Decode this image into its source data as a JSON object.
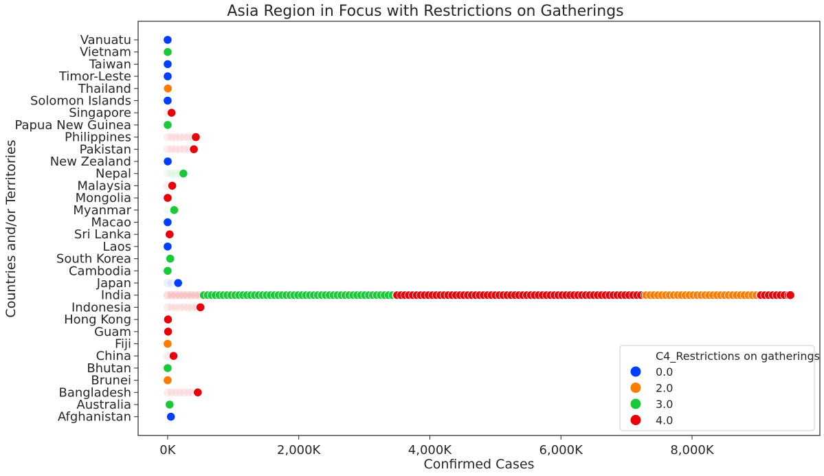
{
  "chart_data": {
    "type": "scatter",
    "title": "Asia Region in Focus with Restrictions on Gatherings",
    "xlabel": "Confirmed Cases",
    "ylabel": "Countries and/or Territories",
    "xlim": [
      -450,
      9950
    ],
    "xticks": [
      0,
      2000,
      4000,
      6000,
      8000
    ],
    "xtick_labels": [
      "0K",
      "2,000K",
      "4,000K",
      "6,000K",
      "8,000K"
    ],
    "x_unit": "thousands",
    "categories": [
      "Vanuatu",
      "Vietnam",
      "Taiwan",
      "Timor-Leste",
      "Thailand",
      "Solomon Islands",
      "Singapore",
      "Papua New Guinea",
      "Philippines",
      "Pakistan",
      "New Zealand",
      "Nepal",
      "Malaysia",
      "Mongolia",
      "Myanmar",
      "Macao",
      "Sri Lanka",
      "Laos",
      "South Korea",
      "Cambodia",
      "Japan",
      "India",
      "Indonesia",
      "Hong Kong",
      "Guam",
      "Fiji",
      "China",
      "Bhutan",
      "Brunei",
      "Bangladesh",
      "Australia",
      "Afghanistan"
    ],
    "grid": false,
    "legend": {
      "title": "C4_Restrictions on gatherings",
      "placement": "lower-right",
      "entries": [
        {
          "label": "0.0",
          "level": 0,
          "color": "#023eff"
        },
        {
          "label": "2.0",
          "level": 2,
          "color": "#ff7c00"
        },
        {
          "label": "3.0",
          "level": 3,
          "color": "#1ac938"
        },
        {
          "label": "4.0",
          "level": 4,
          "color": "#e8000b"
        }
      ]
    },
    "points": [
      {
        "country": "Vanuatu",
        "x": 0,
        "level": 0
      },
      {
        "country": "Vietnam",
        "x": 1,
        "level": 3
      },
      {
        "country": "Taiwan",
        "x": 1,
        "level": 0
      },
      {
        "country": "Timor-Leste",
        "x": 1,
        "level": 0
      },
      {
        "country": "Thailand",
        "x": 4,
        "level": 2
      },
      {
        "country": "Solomon Islands",
        "x": 0,
        "level": 0
      },
      {
        "country": "Singapore",
        "x": 60,
        "level": 4
      },
      {
        "country": "Papua New Guinea",
        "x": 1,
        "level": 3
      },
      {
        "country": "Philippines",
        "x": 430,
        "level": 4
      },
      {
        "country": "Pakistan",
        "x": 400,
        "level": 4
      },
      {
        "country": "New Zealand",
        "x": 2,
        "level": 0
      },
      {
        "country": "Nepal",
        "x": 240,
        "level": 3
      },
      {
        "country": "Malaysia",
        "x": 70,
        "level": 4
      },
      {
        "country": "Mongolia",
        "x": 1,
        "level": 4
      },
      {
        "country": "Myanmar",
        "x": 100,
        "level": 3
      },
      {
        "country": "Macao",
        "x": 0,
        "level": 0
      },
      {
        "country": "Sri Lanka",
        "x": 30,
        "level": 4
      },
      {
        "country": "Laos",
        "x": 0,
        "level": 0
      },
      {
        "country": "South Korea",
        "x": 40,
        "level": 3
      },
      {
        "country": "Cambodia",
        "x": 0,
        "level": 3
      },
      {
        "country": "Japan",
        "x": 160,
        "level": 0
      },
      {
        "country": "India",
        "x": 9500,
        "level": 4
      },
      {
        "country": "Indonesia",
        "x": 500,
        "level": 4
      },
      {
        "country": "Hong Kong",
        "x": 6,
        "level": 4
      },
      {
        "country": "Guam",
        "x": 7,
        "level": 4
      },
      {
        "country": "Fiji",
        "x": 0,
        "level": 2
      },
      {
        "country": "China",
        "x": 90,
        "level": 4
      },
      {
        "country": "Bhutan",
        "x": 0,
        "level": 3
      },
      {
        "country": "Brunei",
        "x": 0,
        "level": 2
      },
      {
        "country": "Bangladesh",
        "x": 460,
        "level": 4
      },
      {
        "country": "Australia",
        "x": 30,
        "level": 3
      },
      {
        "country": "Afghanistan",
        "x": 50,
        "level": 0
      }
    ],
    "india_series": [
      {
        "from": 0,
        "to": 550,
        "level": 4
      },
      {
        "from": 550,
        "to": 3500,
        "level": 3
      },
      {
        "from": 3500,
        "to": 7300,
        "level": 4
      },
      {
        "from": 7300,
        "to": 9050,
        "level": 2
      },
      {
        "from": 9050,
        "to": 9500,
        "level": 4
      }
    ],
    "trails": [
      {
        "country": "Philippines",
        "to": 430,
        "level": 4
      },
      {
        "country": "Pakistan",
        "to": 400,
        "level": 4
      },
      {
        "country": "Indonesia",
        "to": 500,
        "level": 4
      },
      {
        "country": "Bangladesh",
        "to": 460,
        "level": 4
      },
      {
        "country": "Nepal",
        "to": 240,
        "level": 3
      },
      {
        "country": "Japan",
        "to": 160,
        "level": 0
      },
      {
        "country": "China",
        "to": 90,
        "level": 4
      },
      {
        "country": "Myanmar",
        "to": 100,
        "level": 3
      },
      {
        "country": "Singapore",
        "to": 60,
        "level": 4
      },
      {
        "country": "Malaysia",
        "to": 70,
        "level": 4
      }
    ]
  }
}
